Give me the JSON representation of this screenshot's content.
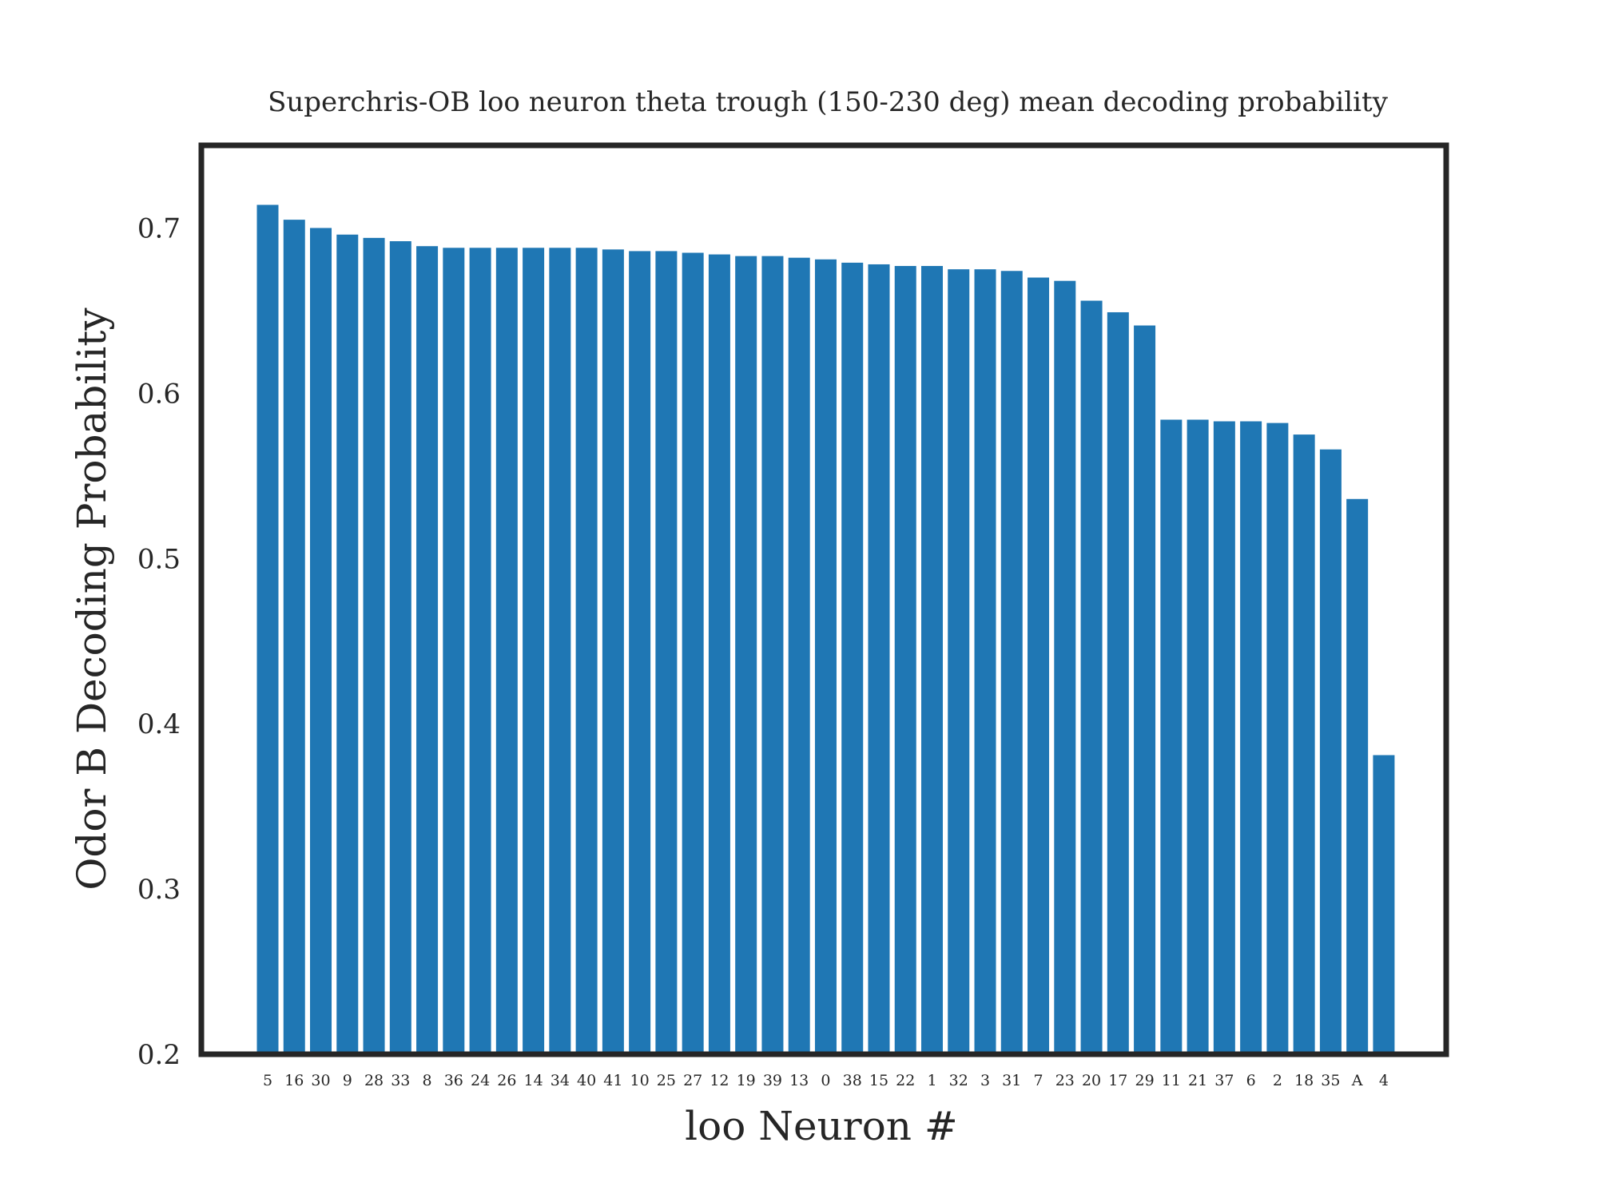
{
  "chart_data": {
    "type": "bar",
    "title": "Superchris-OB loo neuron theta trough (150-230 deg) mean decoding probability",
    "xlabel": "loo Neuron #",
    "ylabel": "Odor B Decoding Probability",
    "ylim": [
      0.2,
      0.75
    ],
    "yticks": [
      "0.2",
      "0.3",
      "0.4",
      "0.5",
      "0.6",
      "0.7"
    ],
    "grid": false,
    "bar_color": "#1f77b4",
    "frame_color": "#262626",
    "categories": [
      "5",
      "16",
      "30",
      "9",
      "28",
      "33",
      "8",
      "36",
      "24",
      "26",
      "14",
      "34",
      "40",
      "41",
      "10",
      "25",
      "27",
      "12",
      "19",
      "39",
      "13",
      "0",
      "38",
      "15",
      "22",
      "1",
      "32",
      "3",
      "31",
      "7",
      "23",
      "20",
      "17",
      "29",
      "11",
      "21",
      "37",
      "6",
      "2",
      "18",
      "35",
      "A",
      "4"
    ],
    "values": [
      0.714,
      0.705,
      0.7,
      0.696,
      0.694,
      0.692,
      0.689,
      0.688,
      0.688,
      0.688,
      0.688,
      0.688,
      0.688,
      0.687,
      0.686,
      0.686,
      0.685,
      0.684,
      0.683,
      0.683,
      0.682,
      0.681,
      0.679,
      0.678,
      0.677,
      0.677,
      0.675,
      0.675,
      0.674,
      0.67,
      0.668,
      0.656,
      0.649,
      0.641,
      0.584,
      0.584,
      0.583,
      0.583,
      0.582,
      0.575,
      0.566,
      0.536,
      0.381
    ]
  }
}
